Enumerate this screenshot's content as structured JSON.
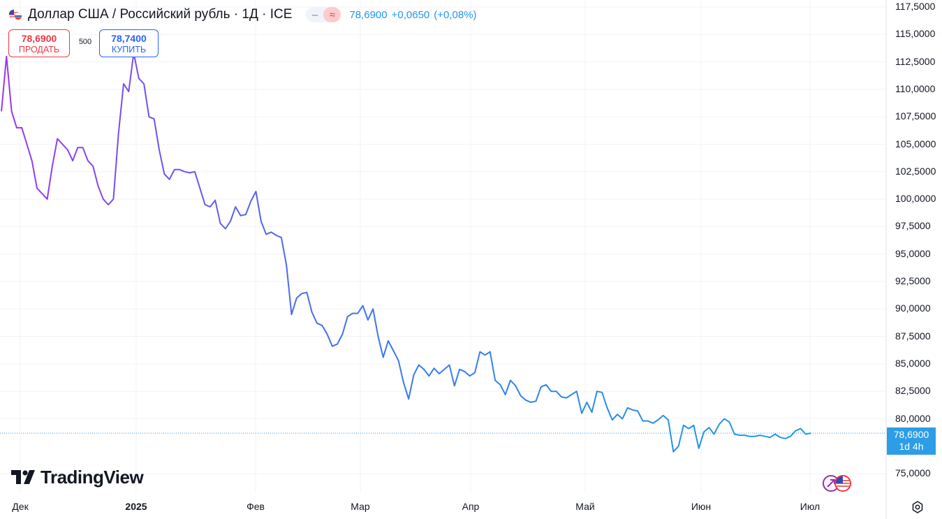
{
  "header": {
    "title": "Доллар США / Российский рубль · 1Д · ICE",
    "pill_left": "‒",
    "pill_right": "≈",
    "last": "78,6900",
    "change": "+0,0650",
    "change_pct": "(+0,08%)"
  },
  "trade": {
    "sell_value": "78,6900",
    "sell_label": "ПРОДАТЬ",
    "spread": "500",
    "buy_value": "78,7400",
    "buy_label": "КУПИТЬ"
  },
  "price_tag": {
    "value": "78,6900",
    "countdown": "1d 4h",
    "color": "#2d9de5"
  },
  "logo": {
    "text": "TradingView",
    "icon": "tradingview-logo-icon"
  },
  "colors": {
    "line_start": "#9a35f0",
    "line_mid": "#3c74ec",
    "line_end": "#1c9fe4",
    "grid": "#f0f3fa",
    "price_line": "#2196f3"
  },
  "chart_data": {
    "type": "line",
    "title": "Доллар США / Российский рубль · 1Д · ICE",
    "xlabel": "",
    "ylabel": "",
    "ylim": [
      72.5,
      117.5
    ],
    "grid": true,
    "last_value": 78.69,
    "x_ticks": [
      "Дек",
      "2025",
      "Фев",
      "Мар",
      "Апр",
      "Май",
      "Июн",
      "Июл"
    ],
    "y_ticks": [
      "117,5000",
      "115,0000",
      "112,5000",
      "110,0000",
      "107,5000",
      "105,0000",
      "102,5000",
      "100,0000",
      "97,5000",
      "95,0000",
      "92,5000",
      "90,0000",
      "87,5000",
      "85,0000",
      "82,5000",
      "80,0000",
      "75,0000"
    ],
    "y_tick_values": [
      117.5,
      115,
      112.5,
      110,
      107.5,
      105,
      102.5,
      100,
      97.5,
      95,
      92.5,
      90,
      87.5,
      85,
      82.5,
      80,
      75
    ],
    "series": [
      {
        "values": [
          108.0,
          113.0,
          108.0,
          106.5,
          106.5,
          105.0,
          103.5,
          101.0,
          100.5,
          100.0,
          103.0,
          105.5,
          105.0,
          104.5,
          103.5,
          104.7,
          104.7,
          103.5,
          103.0,
          101.2,
          100.0,
          99.5,
          100.0,
          106.0,
          110.5,
          109.8,
          113.3,
          111.0,
          110.5,
          107.5,
          107.3,
          104.5,
          102.3,
          101.8,
          102.7,
          102.7,
          102.5,
          102.4,
          102.5,
          101.0,
          99.5,
          99.3,
          99.9,
          97.8,
          97.3,
          98.0,
          99.3,
          98.5,
          98.6,
          99.8,
          100.7,
          98.0,
          96.8,
          97.0,
          96.7,
          96.5,
          94.0,
          89.5,
          91.0,
          91.4,
          91.5,
          89.7,
          88.7,
          88.5,
          87.7,
          86.6,
          86.8,
          87.7,
          89.3,
          89.6,
          89.6,
          90.3,
          89.0,
          90.0,
          87.5,
          85.6,
          87.1,
          86.2,
          85.3,
          83.3,
          81.8,
          84.0,
          84.9,
          84.5,
          83.9,
          84.6,
          84.1,
          84.5,
          84.9,
          83.0,
          84.5,
          84.3,
          83.9,
          84.2,
          86.1,
          85.8,
          86.1,
          83.5,
          83.1,
          82.2,
          83.5,
          83.0,
          82.1,
          81.7,
          81.5,
          81.6,
          82.9,
          83.1,
          82.5,
          82.5,
          82.0,
          81.9,
          82.2,
          82.5,
          80.5,
          81.5,
          80.6,
          82.5,
          82.4,
          81.0,
          79.9,
          80.4,
          80.0,
          81.0,
          80.8,
          80.7,
          79.8,
          79.8,
          79.6,
          79.9,
          80.3,
          79.9,
          77.0,
          77.5,
          79.4,
          79.1,
          79.4,
          77.3,
          78.8,
          79.2,
          78.6,
          79.5,
          80.0,
          79.7,
          78.6,
          78.5,
          78.5,
          78.4,
          78.4,
          78.5,
          78.4,
          78.3,
          78.6,
          78.3,
          78.2,
          78.4,
          78.9,
          79.1,
          78.6,
          78.69
        ]
      }
    ]
  }
}
